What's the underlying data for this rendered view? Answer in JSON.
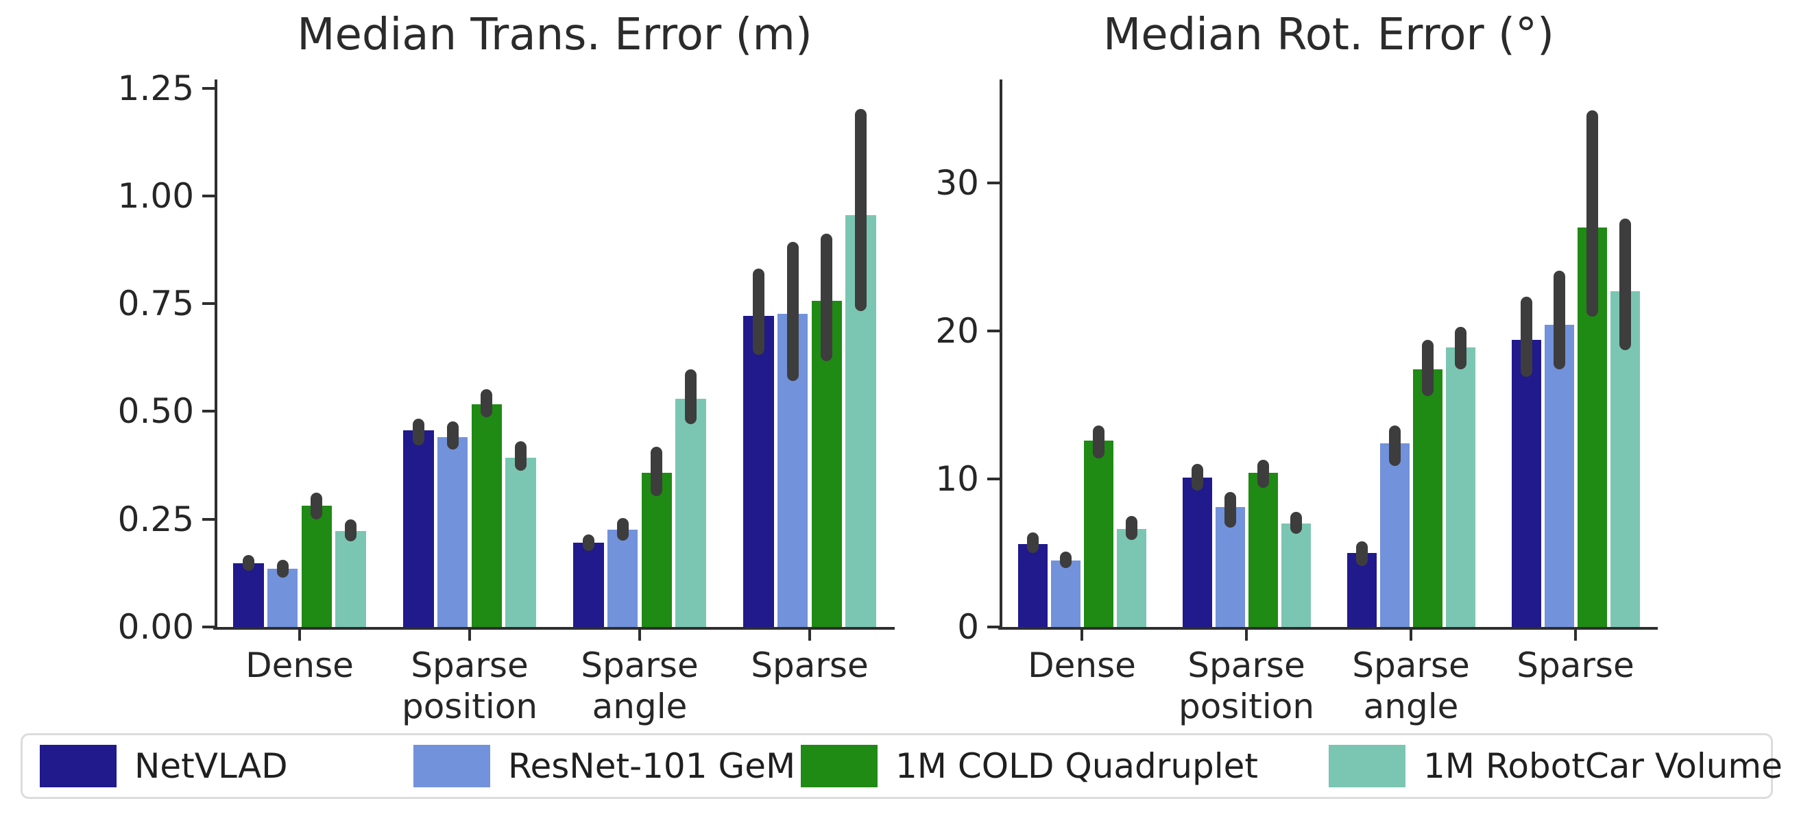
{
  "figure_title": "",
  "colors": {
    "navy": "#201a8c",
    "light_blue": "#7292db",
    "green": "#1f8a14",
    "teal": "#7bc6b2",
    "error_bar": "#3d3d3d",
    "axis": "#2e2e2e",
    "text": "#262626",
    "legend_border": "#dcdcdc"
  },
  "chart_data": [
    {
      "type": "bar",
      "title": "Median Trans. Error (m)",
      "xlabel": "",
      "ylabel": "",
      "ylim": [
        0,
        1.27
      ],
      "grid": false,
      "ytick_values": [
        0,
        0.25,
        0.5,
        0.75,
        1.0,
        1.25
      ],
      "ytick_labels": [
        "0.00",
        "0.25",
        "0.50",
        "0.75",
        "1.00",
        "1.25"
      ],
      "categories": [
        "Dense",
        "Sparse\nposition",
        "Sparse\nangle",
        "Sparse"
      ],
      "series": [
        {
          "name": "NetVLAD",
          "color": "#201a8c",
          "values": [
            0.148,
            0.456,
            0.196,
            0.721
          ],
          "err_lo": [
            0.13,
            0.421,
            0.177,
            0.631
          ],
          "err_hi": [
            0.167,
            0.483,
            0.214,
            0.832
          ]
        },
        {
          "name": "ResNet-101 GeM",
          "color": "#7292db",
          "values": [
            0.135,
            0.441,
            0.226,
            0.726
          ],
          "err_lo": [
            0.115,
            0.411,
            0.201,
            0.571
          ],
          "err_hi": [
            0.156,
            0.477,
            0.253,
            0.893
          ]
        },
        {
          "name": "1M COLD Quadruplet",
          "color": "#1f8a14",
          "values": [
            0.281,
            0.516,
            0.358,
            0.756
          ],
          "err_lo": [
            0.25,
            0.487,
            0.304,
            0.616
          ],
          "err_hi": [
            0.312,
            0.551,
            0.418,
            0.912
          ]
        },
        {
          "name": "1M RobotCar Volume",
          "color": "#7bc6b2",
          "values": [
            0.222,
            0.393,
            0.53,
            0.956
          ],
          "err_lo": [
            0.198,
            0.362,
            0.47,
            0.732
          ],
          "err_hi": [
            0.25,
            0.431,
            0.597,
            1.201
          ]
        }
      ]
    },
    {
      "type": "bar",
      "title": "Median Rot. Error (°)",
      "xlabel": "",
      "ylabel": "",
      "ylim": [
        0,
        37
      ],
      "grid": false,
      "ytick_values": [
        0,
        10,
        20,
        30
      ],
      "ytick_labels": [
        "0",
        "10",
        "20",
        "30"
      ],
      "categories": [
        "Dense",
        "Sparse\nposition",
        "Sparse\nangle",
        "Sparse"
      ],
      "series": [
        {
          "name": "NetVLAD",
          "color": "#201a8c",
          "values": [
            5.6,
            10.1,
            5.0,
            19.4
          ],
          "err_lo": [
            5.0,
            9.2,
            4.1,
            16.9
          ],
          "err_hi": [
            6.4,
            11.0,
            5.8,
            22.3
          ]
        },
        {
          "name": "ResNet-101 GeM",
          "color": "#7292db",
          "values": [
            4.5,
            8.1,
            12.4,
            20.4
          ],
          "err_lo": [
            4.0,
            6.7,
            10.9,
            17.4
          ],
          "err_hi": [
            5.1,
            9.1,
            13.6,
            24.1
          ]
        },
        {
          "name": "1M COLD Quadruplet",
          "color": "#1f8a14",
          "values": [
            12.6,
            10.4,
            17.4,
            27.0
          ],
          "err_lo": [
            11.4,
            9.4,
            15.6,
            21.0
          ],
          "err_hi": [
            13.6,
            11.3,
            19.4,
            34.9
          ]
        },
        {
          "name": "1M RobotCar Volume",
          "color": "#7bc6b2",
          "values": [
            6.6,
            7.0,
            18.9,
            22.7
          ],
          "err_lo": [
            5.9,
            6.3,
            17.4,
            18.7
          ],
          "err_hi": [
            7.5,
            7.8,
            20.3,
            27.6
          ]
        }
      ]
    }
  ],
  "legend": {
    "items": [
      {
        "label": "NetVLAD",
        "color": "#201a8c"
      },
      {
        "label": "ResNet-101 GeM",
        "color": "#7292db"
      },
      {
        "label": "1M COLD Quadruplet",
        "color": "#1f8a14"
      },
      {
        "label": "1M RobotCar Volume",
        "color": "#7bc6b2"
      }
    ]
  }
}
